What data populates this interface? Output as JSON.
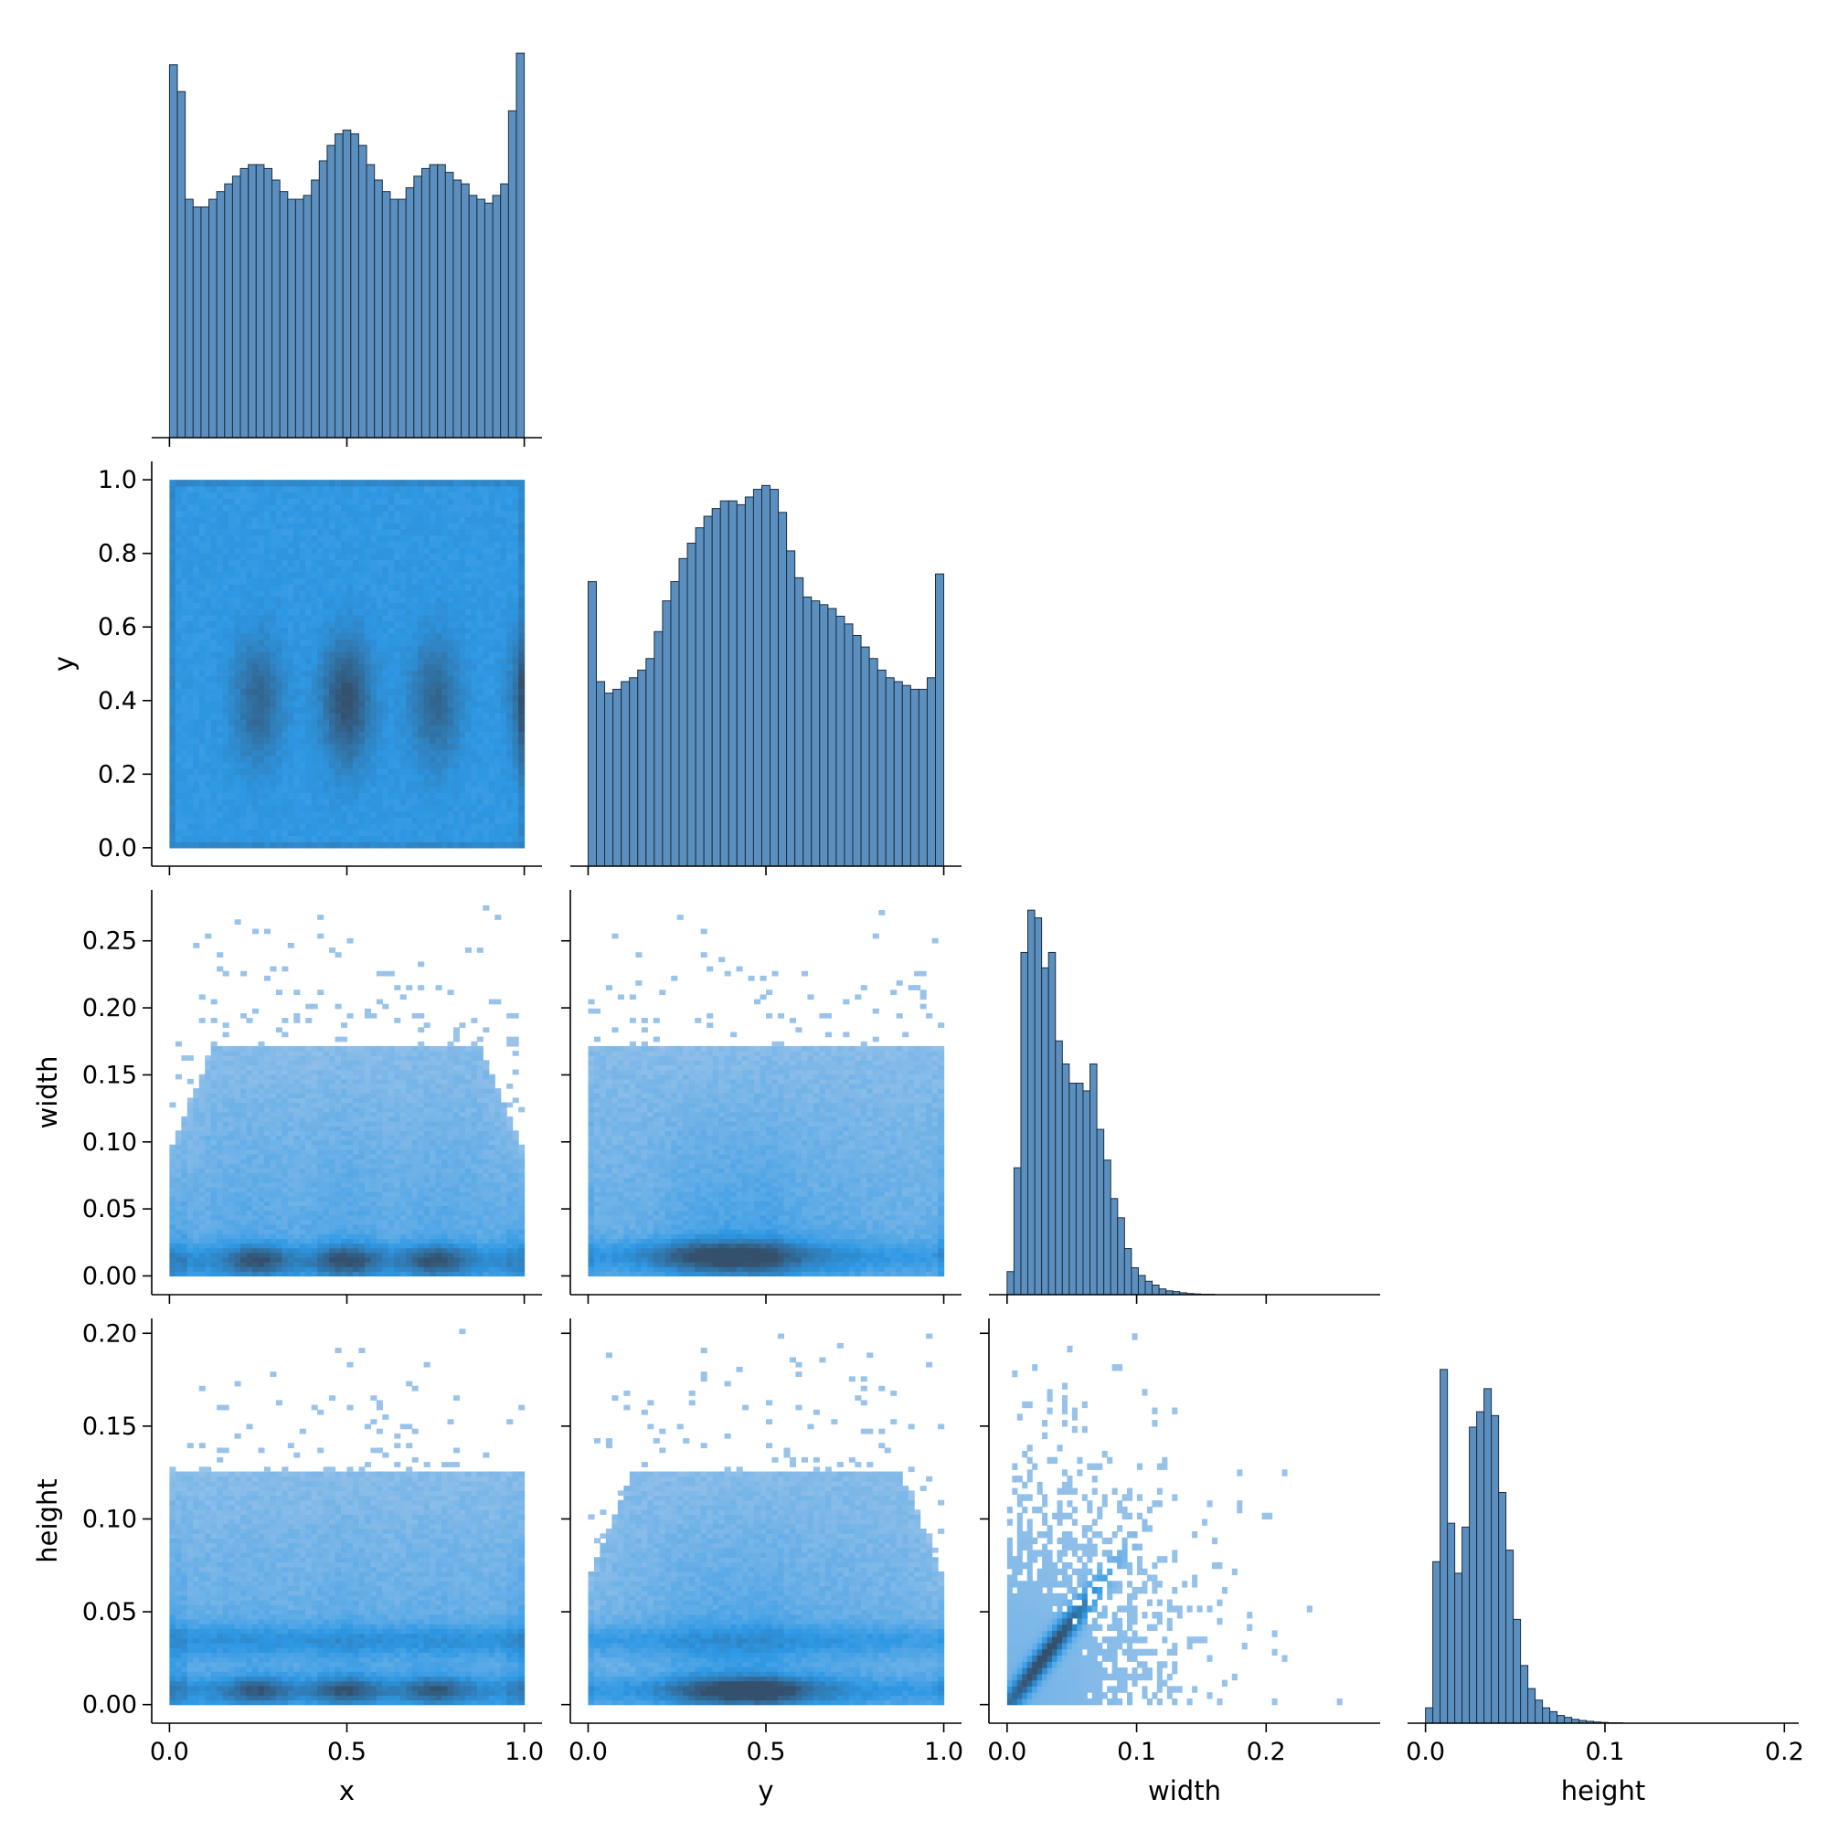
{
  "chart_data": {
    "type": "pairplot",
    "variables": [
      "x",
      "y",
      "width",
      "height"
    ],
    "axes": {
      "x": {
        "label": "x",
        "range": [
          -0.05,
          1.05
        ],
        "ticks": [
          0.0,
          0.5,
          1.0
        ],
        "tick_labels": [
          "0.0",
          "0.5",
          "1.0"
        ]
      },
      "y": {
        "label": "y",
        "range": [
          -0.05,
          1.05
        ],
        "ticks": [
          0.0,
          0.2,
          0.4,
          0.6,
          0.8,
          1.0
        ],
        "tick_labels": [
          "0.0",
          "0.2",
          "0.4",
          "0.6",
          "0.8",
          "1.0"
        ]
      },
      "y_bottom": {
        "ticks": [
          0.0,
          0.5,
          1.0
        ],
        "tick_labels": [
          "0.0",
          "0.5",
          "1.0"
        ]
      },
      "width": {
        "label": "width",
        "range": [
          -0.014,
          0.288
        ],
        "ticks": [
          0.0,
          0.05,
          0.1,
          0.15,
          0.2,
          0.25
        ],
        "tick_labels": [
          "0.00",
          "0.05",
          "0.10",
          "0.15",
          "0.20",
          "0.25"
        ]
      },
      "width_bottom": {
        "ticks": [
          0.0,
          0.1,
          0.2
        ],
        "tick_labels": [
          "0.0",
          "0.1",
          "0.2"
        ]
      },
      "height": {
        "label": "height",
        "range": [
          -0.01,
          0.208
        ],
        "ticks": [
          0.0,
          0.05,
          0.1,
          0.15,
          0.2
        ],
        "tick_labels": [
          "0.00",
          "0.05",
          "0.10",
          "0.15",
          "0.20"
        ]
      },
      "height_bottom": {
        "ticks": [
          0.0,
          0.1,
          0.2
        ],
        "tick_labels": [
          "0.0",
          "0.1",
          "0.2"
        ]
      }
    },
    "diagonal": [
      {
        "variable": "x",
        "type": "histogram",
        "bin_range": [
          0,
          1
        ],
        "counts": [
          0.97,
          0.9,
          0.62,
          0.6,
          0.6,
          0.62,
          0.64,
          0.66,
          0.68,
          0.7,
          0.71,
          0.71,
          0.7,
          0.67,
          0.64,
          0.62,
          0.62,
          0.63,
          0.67,
          0.72,
          0.76,
          0.79,
          0.8,
          0.79,
          0.76,
          0.71,
          0.67,
          0.64,
          0.62,
          0.62,
          0.65,
          0.68,
          0.7,
          0.71,
          0.71,
          0.69,
          0.67,
          0.66,
          0.63,
          0.62,
          0.61,
          0.63,
          0.66,
          0.85,
          1.0
        ]
      },
      {
        "variable": "y",
        "type": "histogram",
        "bin_range": [
          0,
          1
        ],
        "counts": [
          0.74,
          0.48,
          0.45,
          0.46,
          0.48,
          0.49,
          0.51,
          0.54,
          0.61,
          0.69,
          0.74,
          0.8,
          0.84,
          0.88,
          0.91,
          0.93,
          0.95,
          0.95,
          0.94,
          0.96,
          0.98,
          0.99,
          0.98,
          0.92,
          0.82,
          0.75,
          0.7,
          0.69,
          0.68,
          0.67,
          0.65,
          0.63,
          0.6,
          0.57,
          0.54,
          0.51,
          0.49,
          0.48,
          0.47,
          0.46,
          0.46,
          0.49,
          0.76
        ]
      },
      {
        "variable": "width",
        "type": "histogram",
        "bin_range": [
          0,
          0.16
        ],
        "counts": [
          0.06,
          0.33,
          0.89,
          1.0,
          0.98,
          0.85,
          0.89,
          0.66,
          0.6,
          0.55,
          0.55,
          0.53,
          0.6,
          0.43,
          0.35,
          0.25,
          0.2,
          0.12,
          0.07,
          0.05,
          0.035,
          0.025,
          0.015,
          0.01,
          0.008,
          0.005,
          0.003,
          0.002,
          0.001,
          0.001
        ]
      },
      {
        "variable": "height",
        "type": "histogram",
        "bin_range": [
          0,
          0.11
        ],
        "counts": [
          0.04,
          0.42,
          0.92,
          0.52,
          0.39,
          0.51,
          0.77,
          0.81,
          0.87,
          0.8,
          0.6,
          0.45,
          0.27,
          0.15,
          0.09,
          0.06,
          0.04,
          0.03,
          0.02,
          0.015,
          0.01,
          0.007,
          0.005,
          0.003,
          0.002,
          0.001,
          0.001
        ]
      }
    ],
    "pairs": [
      {
        "x": "x",
        "y": "y",
        "type": "2d-histogram",
        "description_levels": "dense bands at y 0.25-0.55 centered at x ~0.25, 0.5, 0.75, 1.0"
      },
      {
        "x": "x",
        "y": "width",
        "type": "2d-histogram"
      },
      {
        "x": "y",
        "y": "width",
        "type": "2d-histogram"
      },
      {
        "x": "x",
        "y": "height",
        "type": "2d-histogram"
      },
      {
        "x": "y",
        "y": "height",
        "type": "2d-histogram"
      },
      {
        "x": "width",
        "y": "height",
        "type": "2d-histogram"
      }
    ],
    "colors": {
      "hist_fill": "#5b8fbf",
      "hist_edge": "#1e2e3c",
      "density_light": "#a6c8ea",
      "density_mid": "#2e98e4",
      "density_dark": "#34506c"
    },
    "grid": false,
    "legend": "none"
  }
}
